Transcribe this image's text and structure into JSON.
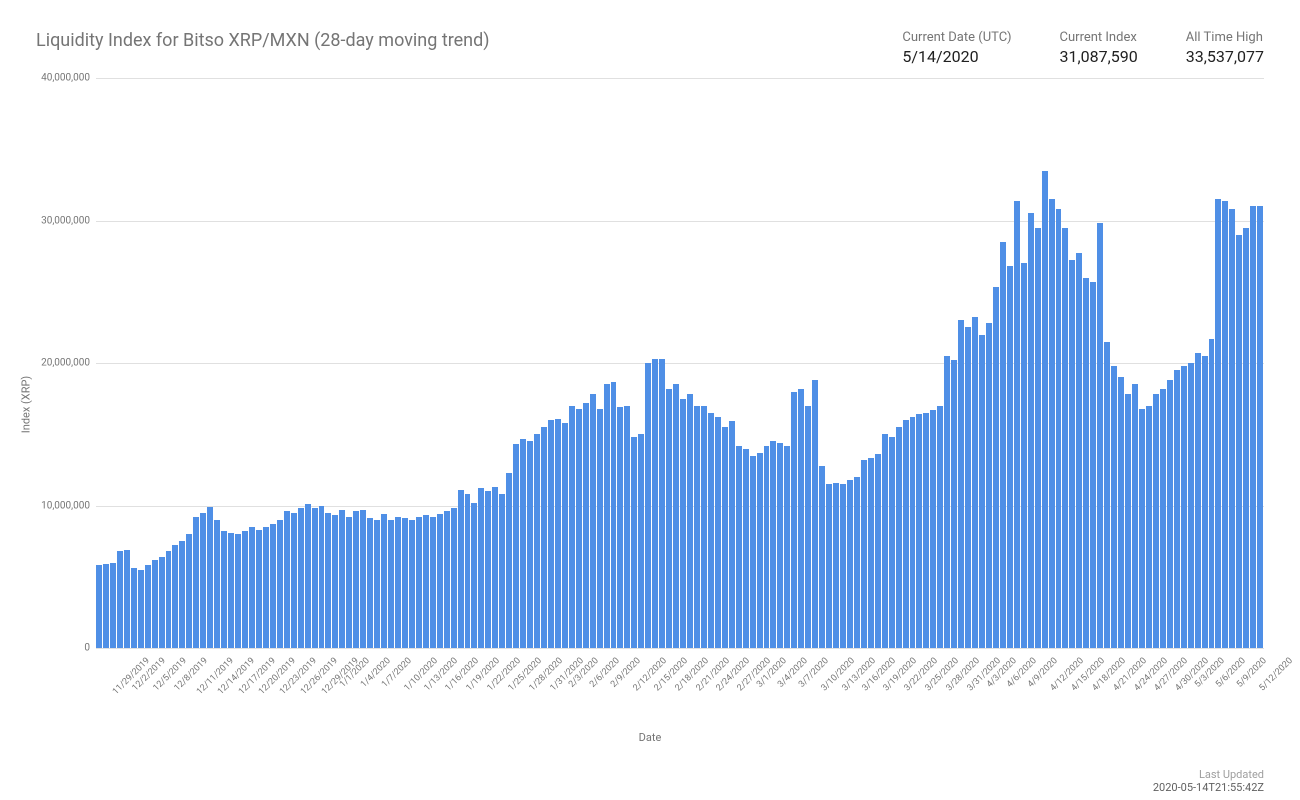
{
  "title": "Liquidity Index for Bitso XRP/MXN (28-day moving trend)",
  "stats": [
    {
      "label": "Current Date (UTC)",
      "value": "5/14/2020"
    },
    {
      "label": "Current Index",
      "value": "31,087,590"
    },
    {
      "label": "All Time High",
      "value": "33,537,077"
    }
  ],
  "chart": {
    "type": "bar",
    "y_axis_label": "Index (XRP)",
    "x_axis_label": "Date",
    "ylim": [
      0,
      40000000
    ],
    "ytick_step": 10000000,
    "y_ticks": [
      {
        "v": 0,
        "label": "0"
      },
      {
        "v": 10000000,
        "label": "10,000,000"
      },
      {
        "v": 20000000,
        "label": "20,000,000"
      },
      {
        "v": 30000000,
        "label": "30,000,000"
      },
      {
        "v": 40000000,
        "label": "40,000,000"
      }
    ],
    "bar_color": "#4f8fe6",
    "grid_color": "#e0e0e0",
    "background_color": "#ffffff",
    "title_color": "#757575",
    "title_fontsize": 18,
    "label_color": "#757575",
    "tick_fontsize": 10,
    "x_label_interval": 3,
    "data": [
      {
        "date": "11/29/2019",
        "v": 5800000
      },
      {
        "date": "11/30/2019",
        "v": 5900000
      },
      {
        "date": "12/1/2019",
        "v": 6000000
      },
      {
        "date": "12/2/2019",
        "v": 6800000
      },
      {
        "date": "12/3/2019",
        "v": 6900000
      },
      {
        "date": "12/4/2019",
        "v": 5600000
      },
      {
        "date": "12/5/2019",
        "v": 5500000
      },
      {
        "date": "12/6/2019",
        "v": 5800000
      },
      {
        "date": "12/7/2019",
        "v": 6200000
      },
      {
        "date": "12/8/2019",
        "v": 6400000
      },
      {
        "date": "12/9/2019",
        "v": 6800000
      },
      {
        "date": "12/10/2019",
        "v": 7200000
      },
      {
        "date": "12/11/2019",
        "v": 7500000
      },
      {
        "date": "12/12/2019",
        "v": 8000000
      },
      {
        "date": "12/13/2019",
        "v": 9200000
      },
      {
        "date": "12/14/2019",
        "v": 9500000
      },
      {
        "date": "12/15/2019",
        "v": 9900000
      },
      {
        "date": "12/16/2019",
        "v": 9000000
      },
      {
        "date": "12/17/2019",
        "v": 8200000
      },
      {
        "date": "12/18/2019",
        "v": 8100000
      },
      {
        "date": "12/19/2019",
        "v": 8000000
      },
      {
        "date": "12/20/2019",
        "v": 8200000
      },
      {
        "date": "12/21/2019",
        "v": 8500000
      },
      {
        "date": "12/22/2019",
        "v": 8300000
      },
      {
        "date": "12/23/2019",
        "v": 8500000
      },
      {
        "date": "12/24/2019",
        "v": 8700000
      },
      {
        "date": "12/25/2019",
        "v": 9000000
      },
      {
        "date": "12/26/2019",
        "v": 9600000
      },
      {
        "date": "12/27/2019",
        "v": 9500000
      },
      {
        "date": "12/28/2019",
        "v": 9800000
      },
      {
        "date": "12/29/2019",
        "v": 10100000
      },
      {
        "date": "12/30/2019",
        "v": 9800000
      },
      {
        "date": "12/31/2019",
        "v": 10000000
      },
      {
        "date": "1/1/2020",
        "v": 9500000
      },
      {
        "date": "1/2/2020",
        "v": 9300000
      },
      {
        "date": "1/3/2020",
        "v": 9700000
      },
      {
        "date": "1/4/2020",
        "v": 9200000
      },
      {
        "date": "1/5/2020",
        "v": 9600000
      },
      {
        "date": "1/6/2020",
        "v": 9700000
      },
      {
        "date": "1/7/2020",
        "v": 9100000
      },
      {
        "date": "1/8/2020",
        "v": 9000000
      },
      {
        "date": "1/9/2020",
        "v": 9400000
      },
      {
        "date": "1/10/2020",
        "v": 9000000
      },
      {
        "date": "1/11/2020",
        "v": 9200000
      },
      {
        "date": "1/12/2020",
        "v": 9100000
      },
      {
        "date": "1/13/2020",
        "v": 9000000
      },
      {
        "date": "1/14/2020",
        "v": 9200000
      },
      {
        "date": "1/15/2020",
        "v": 9300000
      },
      {
        "date": "1/16/2020",
        "v": 9200000
      },
      {
        "date": "1/17/2020",
        "v": 9400000
      },
      {
        "date": "1/18/2020",
        "v": 9600000
      },
      {
        "date": "1/19/2020",
        "v": 9800000
      },
      {
        "date": "1/20/2020",
        "v": 11100000
      },
      {
        "date": "1/21/2020",
        "v": 10800000
      },
      {
        "date": "1/22/2020",
        "v": 10200000
      },
      {
        "date": "1/23/2020",
        "v": 11200000
      },
      {
        "date": "1/24/2020",
        "v": 11000000
      },
      {
        "date": "1/25/2020",
        "v": 11300000
      },
      {
        "date": "1/26/2020",
        "v": 10800000
      },
      {
        "date": "1/27/2020",
        "v": 12300000
      },
      {
        "date": "1/28/2020",
        "v": 14300000
      },
      {
        "date": "1/29/2020",
        "v": 14700000
      },
      {
        "date": "1/30/2020",
        "v": 14500000
      },
      {
        "date": "1/31/2020",
        "v": 15000000
      },
      {
        "date": "2/1/2020",
        "v": 15500000
      },
      {
        "date": "2/2/2020",
        "v": 16000000
      },
      {
        "date": "2/3/2020",
        "v": 16100000
      },
      {
        "date": "2/4/2020",
        "v": 15800000
      },
      {
        "date": "2/5/2020",
        "v": 17000000
      },
      {
        "date": "2/6/2020",
        "v": 16800000
      },
      {
        "date": "2/7/2020",
        "v": 17200000
      },
      {
        "date": "2/8/2020",
        "v": 17800000
      },
      {
        "date": "2/9/2020",
        "v": 16800000
      },
      {
        "date": "2/10/2020",
        "v": 18500000
      },
      {
        "date": "2/11/2020",
        "v": 18700000
      },
      {
        "date": "2/12/2020",
        "v": 16900000
      },
      {
        "date": "2/13/2020",
        "v": 17000000
      },
      {
        "date": "2/14/2020",
        "v": 14800000
      },
      {
        "date": "2/15/2020",
        "v": 15000000
      },
      {
        "date": "2/16/2020",
        "v": 20000000
      },
      {
        "date": "2/17/2020",
        "v": 20300000
      },
      {
        "date": "2/18/2020",
        "v": 20300000
      },
      {
        "date": "2/19/2020",
        "v": 18200000
      },
      {
        "date": "2/20/2020",
        "v": 18500000
      },
      {
        "date": "2/21/2020",
        "v": 17500000
      },
      {
        "date": "2/22/2020",
        "v": 17800000
      },
      {
        "date": "2/23/2020",
        "v": 17000000
      },
      {
        "date": "2/24/2020",
        "v": 17000000
      },
      {
        "date": "2/25/2020",
        "v": 16500000
      },
      {
        "date": "2/26/2020",
        "v": 16200000
      },
      {
        "date": "2/27/2020",
        "v": 15500000
      },
      {
        "date": "2/28/2020",
        "v": 15900000
      },
      {
        "date": "2/29/2020",
        "v": 14200000
      },
      {
        "date": "3/1/2020",
        "v": 14000000
      },
      {
        "date": "3/2/2020",
        "v": 13500000
      },
      {
        "date": "3/3/2020",
        "v": 13700000
      },
      {
        "date": "3/4/2020",
        "v": 14200000
      },
      {
        "date": "3/5/2020",
        "v": 14500000
      },
      {
        "date": "3/6/2020",
        "v": 14400000
      },
      {
        "date": "3/7/2020",
        "v": 14200000
      },
      {
        "date": "3/8/2020",
        "v": 18000000
      },
      {
        "date": "3/9/2020",
        "v": 18200000
      },
      {
        "date": "3/10/2020",
        "v": 17000000
      },
      {
        "date": "3/11/2020",
        "v": 18800000
      },
      {
        "date": "3/12/2020",
        "v": 12800000
      },
      {
        "date": "3/13/2020",
        "v": 11500000
      },
      {
        "date": "3/14/2020",
        "v": 11600000
      },
      {
        "date": "3/15/2020",
        "v": 11500000
      },
      {
        "date": "3/16/2020",
        "v": 11800000
      },
      {
        "date": "3/17/2020",
        "v": 12000000
      },
      {
        "date": "3/18/2020",
        "v": 13200000
      },
      {
        "date": "3/19/2020",
        "v": 13300000
      },
      {
        "date": "3/20/2020",
        "v": 13600000
      },
      {
        "date": "3/21/2020",
        "v": 15000000
      },
      {
        "date": "3/22/2020",
        "v": 14800000
      },
      {
        "date": "3/23/2020",
        "v": 15500000
      },
      {
        "date": "3/24/2020",
        "v": 16000000
      },
      {
        "date": "3/25/2020",
        "v": 16200000
      },
      {
        "date": "3/26/2020",
        "v": 16400000
      },
      {
        "date": "3/27/2020",
        "v": 16500000
      },
      {
        "date": "3/28/2020",
        "v": 16700000
      },
      {
        "date": "3/29/2020",
        "v": 17000000
      },
      {
        "date": "3/30/2020",
        "v": 20500000
      },
      {
        "date": "3/31/2020",
        "v": 20200000
      },
      {
        "date": "4/1/2020",
        "v": 23000000
      },
      {
        "date": "4/2/2020",
        "v": 22500000
      },
      {
        "date": "4/3/2020",
        "v": 23200000
      },
      {
        "date": "4/4/2020",
        "v": 22000000
      },
      {
        "date": "4/5/2020",
        "v": 22800000
      },
      {
        "date": "4/6/2020",
        "v": 25300000
      },
      {
        "date": "4/7/2020",
        "v": 28500000
      },
      {
        "date": "4/8/2020",
        "v": 26800000
      },
      {
        "date": "4/9/2020",
        "v": 31400000
      },
      {
        "date": "4/10/2020",
        "v": 27000000
      },
      {
        "date": "4/11/2020",
        "v": 30500000
      },
      {
        "date": "4/12/2020",
        "v": 29500000
      },
      {
        "date": "4/13/2020",
        "v": 33500000
      },
      {
        "date": "4/14/2020",
        "v": 31500000
      },
      {
        "date": "4/15/2020",
        "v": 30800000
      },
      {
        "date": "4/16/2020",
        "v": 29500000
      },
      {
        "date": "4/17/2020",
        "v": 27200000
      },
      {
        "date": "4/18/2020",
        "v": 27700000
      },
      {
        "date": "4/19/2020",
        "v": 26000000
      },
      {
        "date": "4/20/2020",
        "v": 25700000
      },
      {
        "date": "4/21/2020",
        "v": 29800000
      },
      {
        "date": "4/22/2020",
        "v": 21500000
      },
      {
        "date": "4/23/2020",
        "v": 19800000
      },
      {
        "date": "4/24/2020",
        "v": 19000000
      },
      {
        "date": "4/25/2020",
        "v": 17800000
      },
      {
        "date": "4/26/2020",
        "v": 18500000
      },
      {
        "date": "4/27/2020",
        "v": 16800000
      },
      {
        "date": "4/28/2020",
        "v": 17000000
      },
      {
        "date": "4/29/2020",
        "v": 17800000
      },
      {
        "date": "4/30/2020",
        "v": 18200000
      },
      {
        "date": "5/1/2020",
        "v": 18800000
      },
      {
        "date": "5/2/2020",
        "v": 19500000
      },
      {
        "date": "5/3/2020",
        "v": 19800000
      },
      {
        "date": "5/4/2020",
        "v": 20000000
      },
      {
        "date": "5/5/2020",
        "v": 20700000
      },
      {
        "date": "5/6/2020",
        "v": 20500000
      },
      {
        "date": "5/7/2020",
        "v": 21700000
      },
      {
        "date": "5/8/2020",
        "v": 31500000
      },
      {
        "date": "5/9/2020",
        "v": 31400000
      },
      {
        "date": "5/10/2020",
        "v": 30800000
      },
      {
        "date": "5/11/2020",
        "v": 29000000
      },
      {
        "date": "5/12/2020",
        "v": 29500000
      },
      {
        "date": "5/13/2020",
        "v": 31000000
      },
      {
        "date": "5/14/2020",
        "v": 31000000
      }
    ]
  },
  "footer": {
    "label": "Last Updated",
    "value": "2020-05-14T21:55:42Z"
  }
}
